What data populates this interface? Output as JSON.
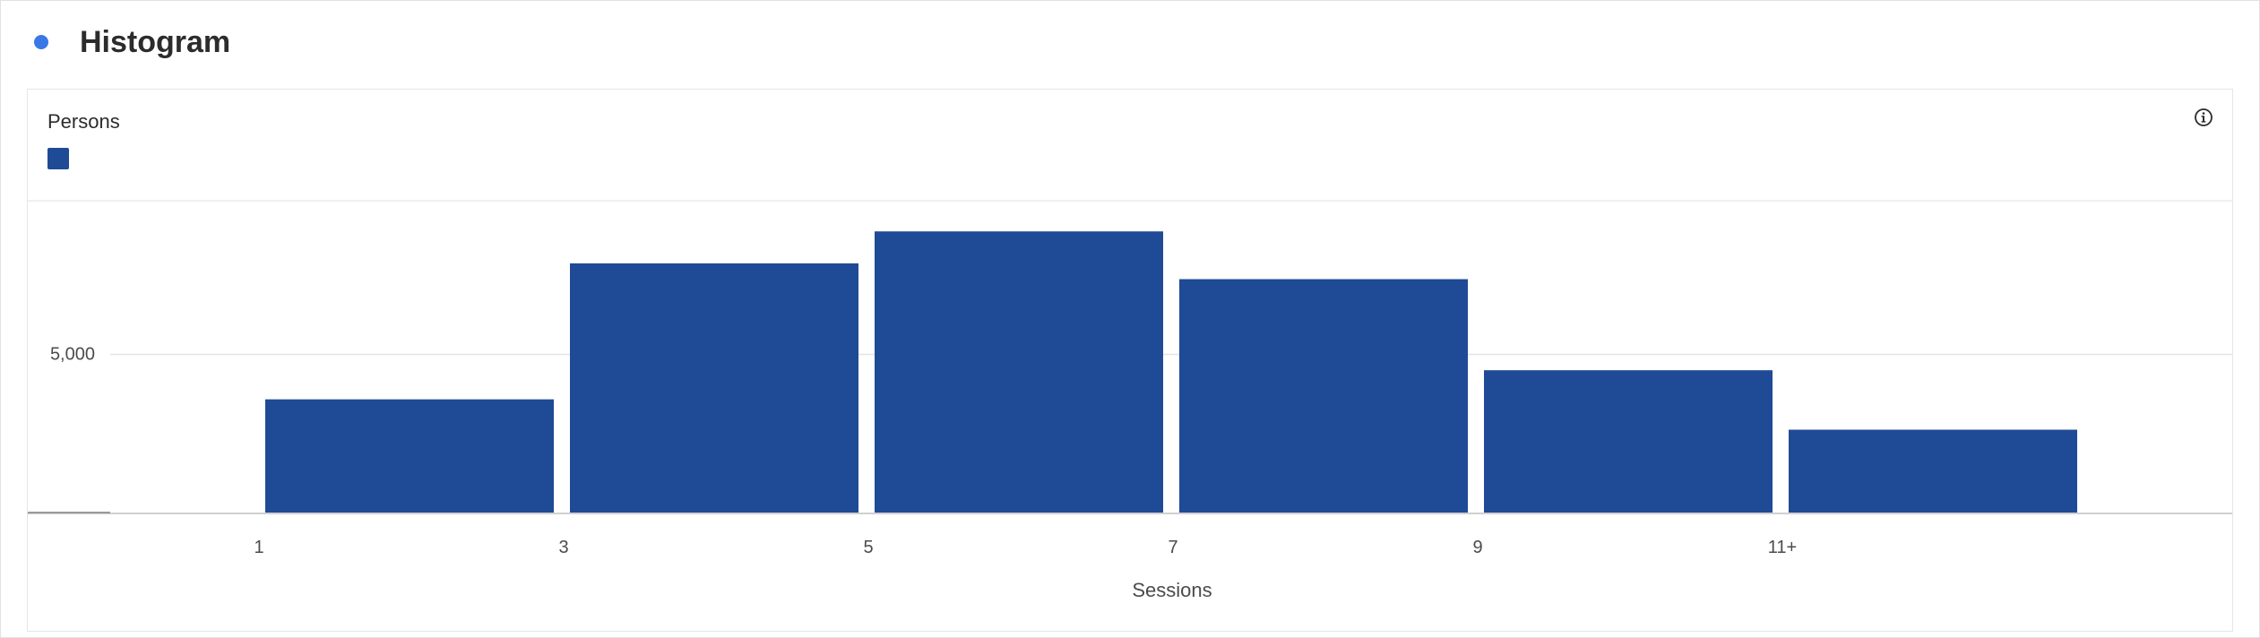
{
  "header": {
    "title": "Histogram",
    "dot_color": "#3b78e7"
  },
  "info_icon": "info-icon",
  "chart_data": {
    "type": "bar",
    "title": "Histogram",
    "categories": [
      "1",
      "3",
      "5",
      "7",
      "9",
      "11+"
    ],
    "series": [
      {
        "name": "Persons",
        "color": "#1f4a96",
        "values": [
          3580,
          7880,
          8890,
          7380,
          4500,
          2620
        ]
      }
    ],
    "xlabel": "Sessions",
    "ylabel": "",
    "yticks": [
      5000
    ],
    "ytick_labels": [
      "5,000"
    ],
    "ylim": [
      0,
      9860
    ],
    "grid": true,
    "legend": "top-left"
  }
}
